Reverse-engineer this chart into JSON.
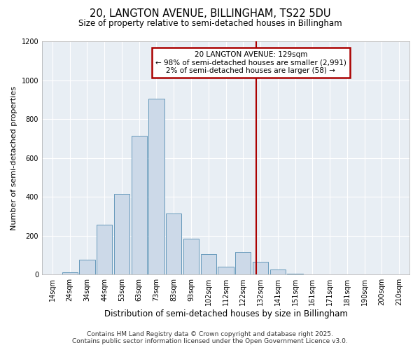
{
  "title": "20, LANGTON AVENUE, BILLINGHAM, TS22 5DU",
  "subtitle": "Size of property relative to semi-detached houses in Billingham",
  "xlabel": "Distribution of semi-detached houses by size in Billingham",
  "ylabel": "Number of semi-detached properties",
  "footer_line1": "Contains HM Land Registry data © Crown copyright and database right 2025.",
  "footer_line2": "Contains public sector information licensed under the Open Government Licence v3.0.",
  "annotation_line1": "20 LANGTON AVENUE: 129sqm",
  "annotation_line2": "← 98% of semi-detached houses are smaller (2,991)",
  "annotation_line3": "2% of semi-detached houses are larger (58) →",
  "categories": [
    "14sqm",
    "24sqm",
    "34sqm",
    "44sqm",
    "53sqm",
    "63sqm",
    "73sqm",
    "83sqm",
    "93sqm",
    "102sqm",
    "112sqm",
    "122sqm",
    "132sqm",
    "141sqm",
    "151sqm",
    "161sqm",
    "171sqm",
    "181sqm",
    "190sqm",
    "200sqm",
    "210sqm"
  ],
  "values": [
    2,
    12,
    75,
    255,
    415,
    715,
    905,
    315,
    185,
    105,
    40,
    115,
    65,
    25,
    5,
    2,
    0,
    2,
    0,
    0,
    0
  ],
  "vline_index": 11.75,
  "ylim": [
    0,
    1200
  ],
  "yticks": [
    0,
    200,
    400,
    600,
    800,
    1000,
    1200
  ],
  "bar_color": "#ccd9e8",
  "bar_edge_color": "#6699bb",
  "vline_color": "#aa0000",
  "annot_box_edge": "#aa0000",
  "bg_color": "#e8eef4",
  "grid_color": "#ffffff",
  "title_fontsize": 10.5,
  "subtitle_fontsize": 8.5,
  "tick_fontsize": 7,
  "ylabel_fontsize": 8,
  "xlabel_fontsize": 8.5,
  "footer_fontsize": 6.5,
  "annot_fontsize": 7.5
}
